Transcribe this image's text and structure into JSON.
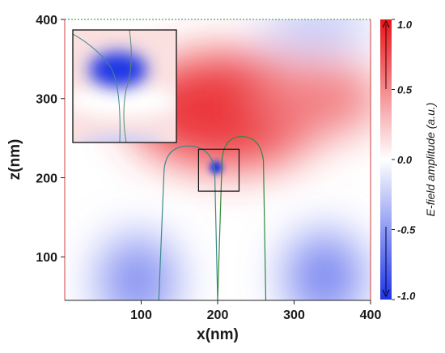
{
  "chart_data": {
    "type": "heatmap",
    "title": "",
    "xlabel": "x(nm)",
    "ylabel": "z(nm)",
    "xlim": [
      0,
      400
    ],
    "ylim": [
      45,
      400
    ],
    "x_ticks": [
      100,
      200,
      300,
      400
    ],
    "y_ticks": [
      100,
      200,
      300,
      400
    ],
    "colorbar": {
      "label": "E-field amplitude (a.u.)",
      "range": [
        -1.0,
        1.0
      ],
      "ticks": [
        {
          "value": 1.0,
          "label": "1.0"
        },
        {
          "value": 0.5,
          "label": "0.5"
        },
        {
          "value": 0.0,
          "label": "0.0"
        },
        {
          "value": -0.5,
          "label": "-0.5"
        },
        {
          "value": -1.0,
          "label": "-1.0"
        }
      ],
      "colors": {
        "high": "#e8151b",
        "mid": "#ffffff",
        "low": "#1f35e6"
      }
    },
    "field_regions": [
      {
        "sign": "positive",
        "center": [
          215,
          285
        ],
        "amplitude": 0.85
      },
      {
        "sign": "positive",
        "center": [
          330,
          300
        ],
        "amplitude": 0.55
      },
      {
        "sign": "negative",
        "center": [
          95,
          70
        ],
        "amplitude": -0.55
      },
      {
        "sign": "negative",
        "center": [
          340,
          75
        ],
        "amplitude": -0.6
      },
      {
        "sign": "negative",
        "center": [
          330,
          390
        ],
        "amplitude": -0.35
      },
      {
        "sign": "negative",
        "center": [
          198,
          213
        ],
        "amplitude": -1.0
      }
    ],
    "structures": [
      {
        "name": "left-tip",
        "color": "#3a8a8a",
        "left_base_x": 123,
        "right_base_x": 200,
        "top_z": 240
      },
      {
        "name": "right-tip",
        "color": "#2f8a3a",
        "left_base_x": 200,
        "right_base_x": 263,
        "top_z": 252
      }
    ],
    "zoom_region": {
      "x": [
        175,
        228
      ],
      "z": [
        183,
        236
      ]
    }
  }
}
